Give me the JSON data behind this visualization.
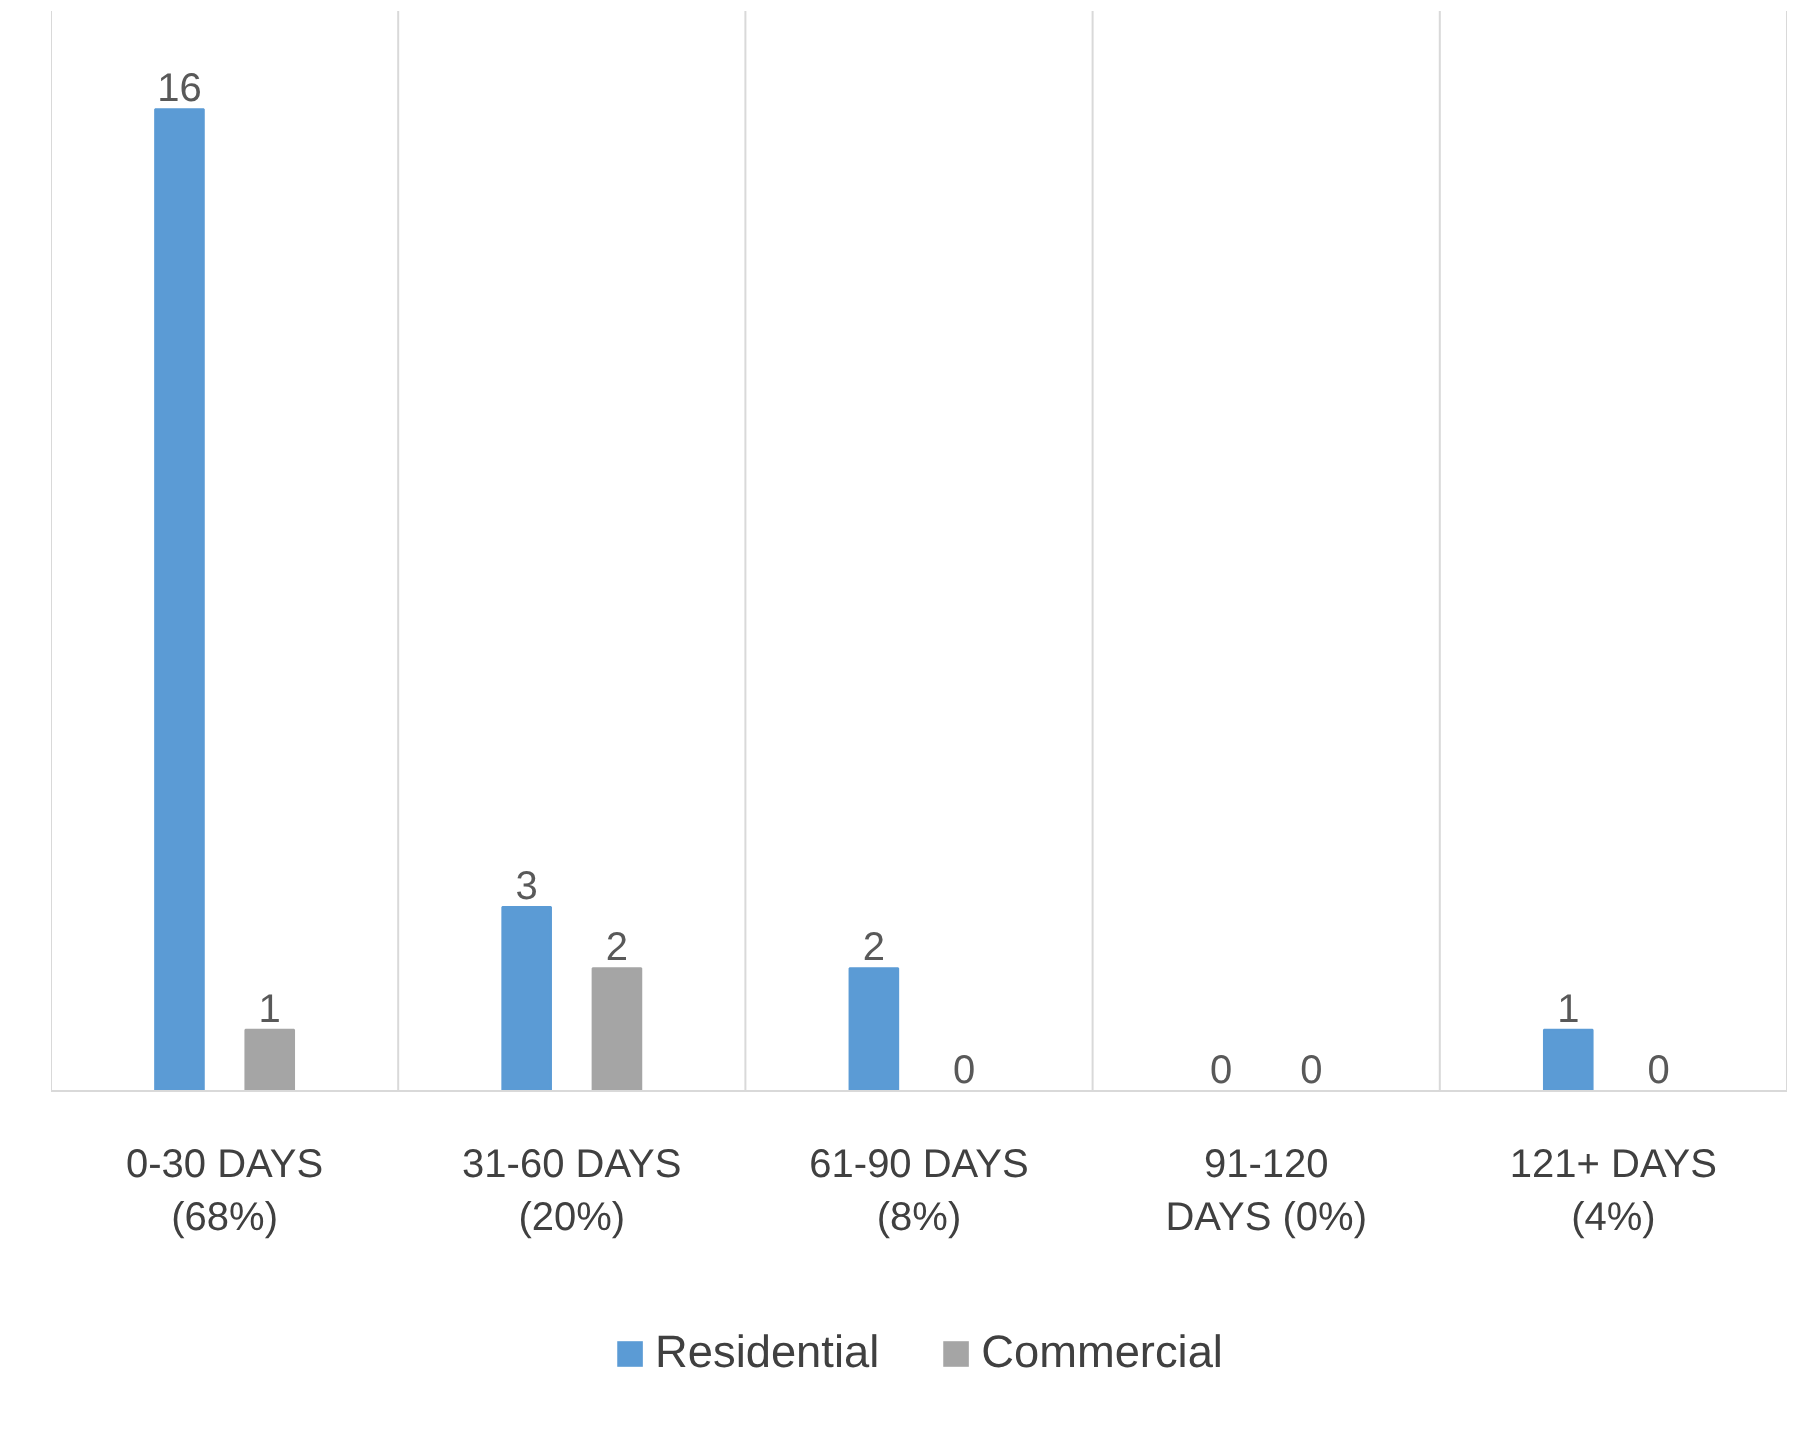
{
  "chart_data": {
    "type": "bar",
    "categories": [
      "0-30 DAYS\n(68%)",
      "31-60 DAYS\n(20%)",
      "61-90 DAYS\n(8%)",
      "91-120\nDAYS (0%)",
      "121+ DAYS\n(4%)"
    ],
    "series": [
      {
        "name": "Residential",
        "color": "#5b9bd5",
        "values": [
          16,
          3,
          2,
          0,
          1
        ]
      },
      {
        "name": "Commercial",
        "color": "#a5a5a5",
        "values": [
          1,
          2,
          0,
          0,
          0
        ]
      }
    ],
    "data_labels": true,
    "grid": "x",
    "legend": "bottom"
  }
}
